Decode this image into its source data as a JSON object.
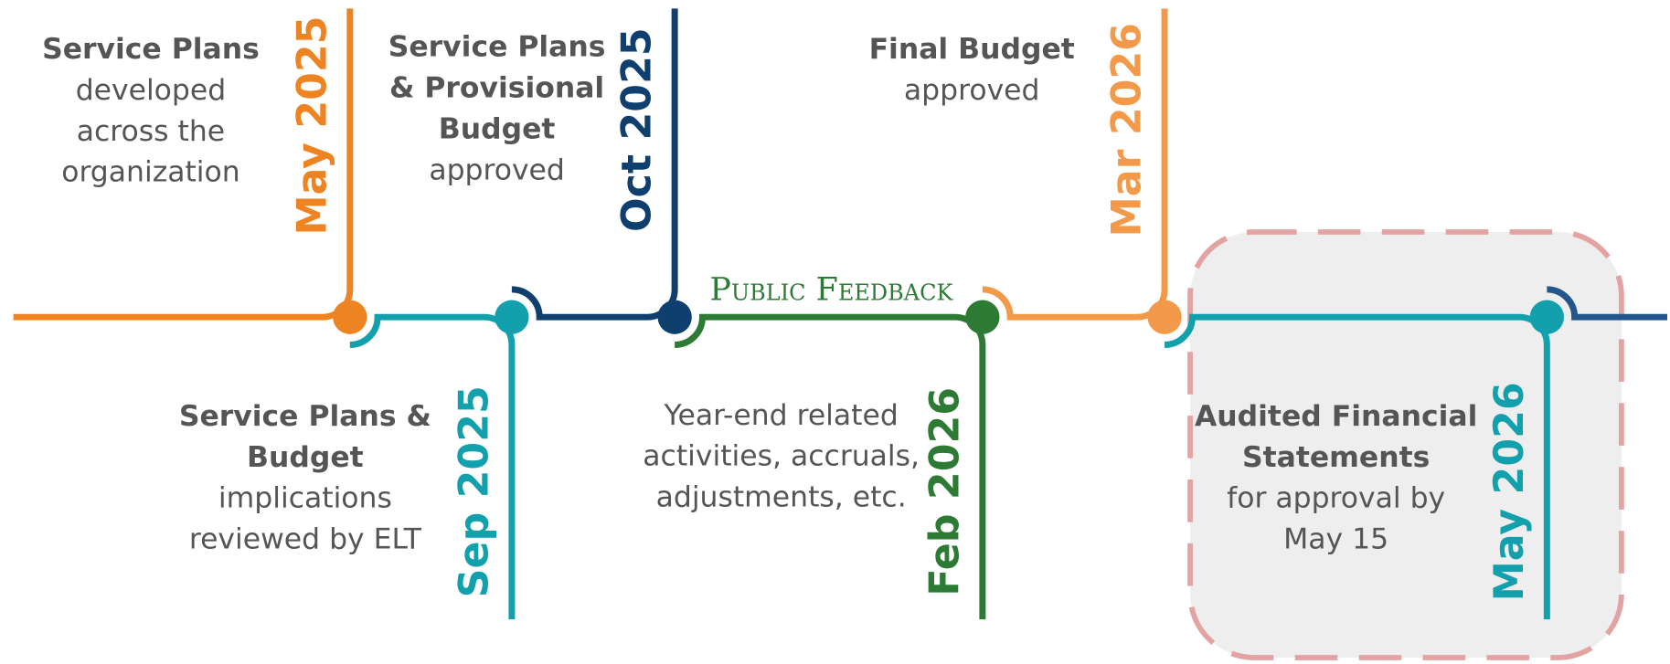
{
  "milestones": [
    {
      "date": "May 2025",
      "color": "#ee8322",
      "title": [
        "Service Plans"
      ],
      "text": [
        "developed",
        "across the",
        "organization"
      ]
    },
    {
      "date": "Sep 2025",
      "color": "#12a0ad",
      "title": [
        "Service Plans &",
        "Budget"
      ],
      "text": [
        "implications",
        "reviewed by ELT"
      ]
    },
    {
      "date": "Oct 2025",
      "color": "#0f3f6e",
      "title": [
        "Service Plans",
        "& Provisional",
        "Budget"
      ],
      "text": [
        "approved"
      ]
    },
    {
      "date": "Feb 2026",
      "color": "#2d7a35",
      "title": [],
      "text": [
        "Year-end related",
        "activities, accruals,",
        "adjustments, etc."
      ]
    },
    {
      "date": "Mar 2026",
      "color": "#f2994a",
      "title": [
        "Final Budget"
      ],
      "text": [
        "approved"
      ]
    },
    {
      "date": "May 2026",
      "color": "#12a0ad",
      "title": [
        "Audited Financial",
        "Statements"
      ],
      "text": [
        "for approval by",
        "May 15"
      ]
    }
  ],
  "feedback": "Public Feedback",
  "end_color": "#23568a"
}
